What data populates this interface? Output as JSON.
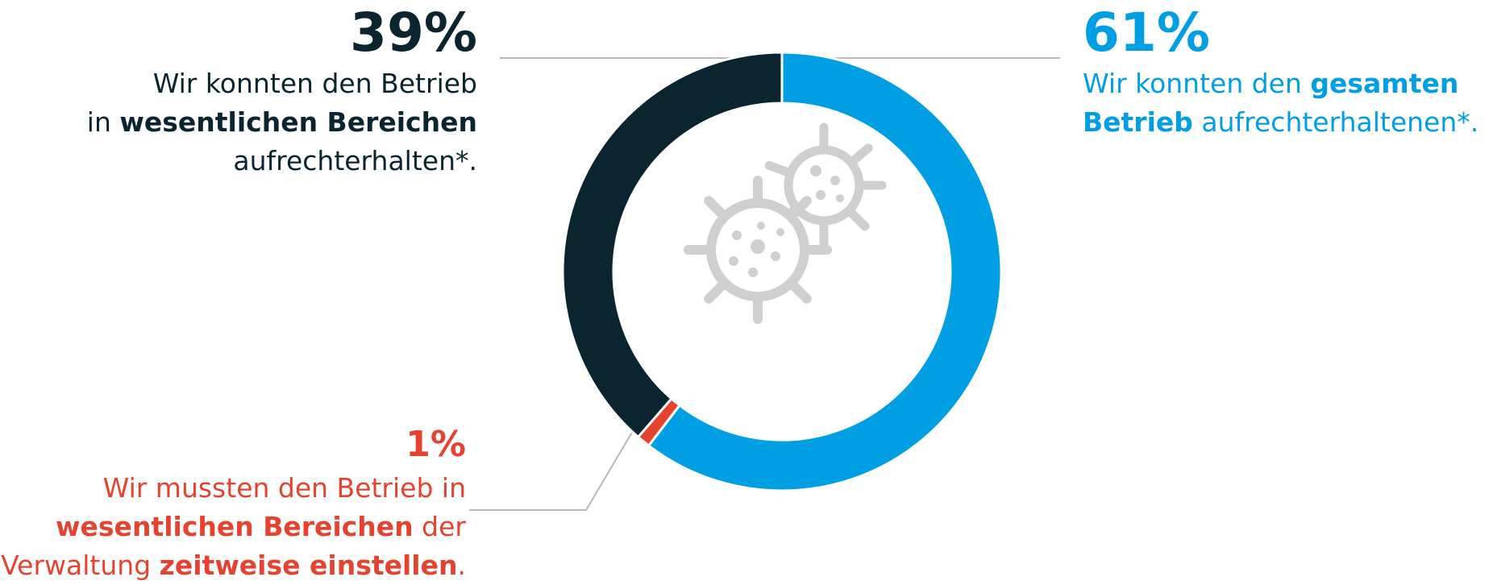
{
  "chart_data": {
    "type": "pie",
    "series": [
      {
        "value": 61,
        "label": "61%",
        "color": "#009fe3",
        "text": [
          [
            "Wir konnten den ",
            "gesamten"
          ],
          [
            "Betrieb",
            " aufrechterhaltenen*."
          ]
        ]
      },
      {
        "value": 1,
        "label": "1%",
        "color": "#e5432f",
        "text": [
          [
            "Wir mussten den Betrieb in"
          ],
          [
            "wesentlichen Bereichen",
            " der"
          ],
          [
            "Verwaltung ",
            "zeitweise einstellen",
            "."
          ]
        ]
      },
      {
        "value": 39,
        "label": "39%",
        "color": "#0b2530",
        "text": [
          [
            "Wir konnten den Betrieb"
          ],
          [
            "in ",
            "wesentlichen Bereichen"
          ],
          [
            "aufrechterhalten*."
          ]
        ]
      }
    ],
    "center_icon": "virus-icon"
  }
}
